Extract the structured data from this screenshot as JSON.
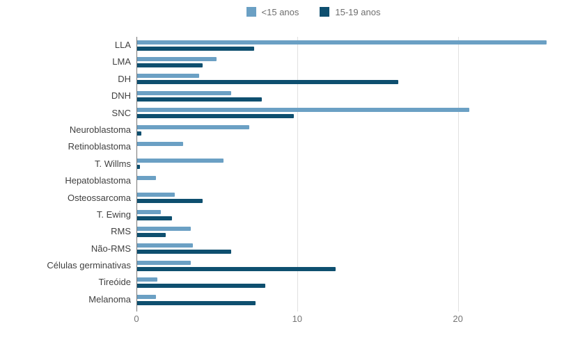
{
  "chart_data": {
    "type": "bar",
    "orientation": "horizontal",
    "categories": [
      "LLA",
      "LMA",
      "DH",
      "DNH",
      "SNC",
      "Neuroblastoma",
      "Retinoblastoma",
      "T. Willms",
      "Hepatoblastoma",
      "Osteossarcoma",
      "T. Ewing",
      "RMS",
      "Não-RMS",
      "Células germinativas",
      "Tireóide",
      "Melanoma"
    ],
    "series": [
      {
        "name": "<15 anos",
        "color": "#6ba0c4",
        "values": [
          25.5,
          5.0,
          3.9,
          5.9,
          20.7,
          7.0,
          2.9,
          5.4,
          1.2,
          2.4,
          1.5,
          3.4,
          3.5,
          3.4,
          1.3,
          1.2
        ]
      },
      {
        "name": "15-19 anos",
        "color": "#0e4f6f",
        "values": [
          7.3,
          4.1,
          16.3,
          7.8,
          9.8,
          0.3,
          0,
          0.2,
          0,
          4.1,
          2.2,
          1.8,
          5.9,
          12.4,
          8.0,
          7.4
        ]
      }
    ],
    "xlim": [
      0,
      26.6
    ],
    "xticks": [
      0,
      10,
      20
    ],
    "grid": true,
    "legend_position": "top",
    "colors": {
      "axis_line": "#757575",
      "gridline": "#e0e0e0",
      "tick_label": "#757575",
      "category_label": "#404040",
      "background": "#ffffff"
    }
  }
}
